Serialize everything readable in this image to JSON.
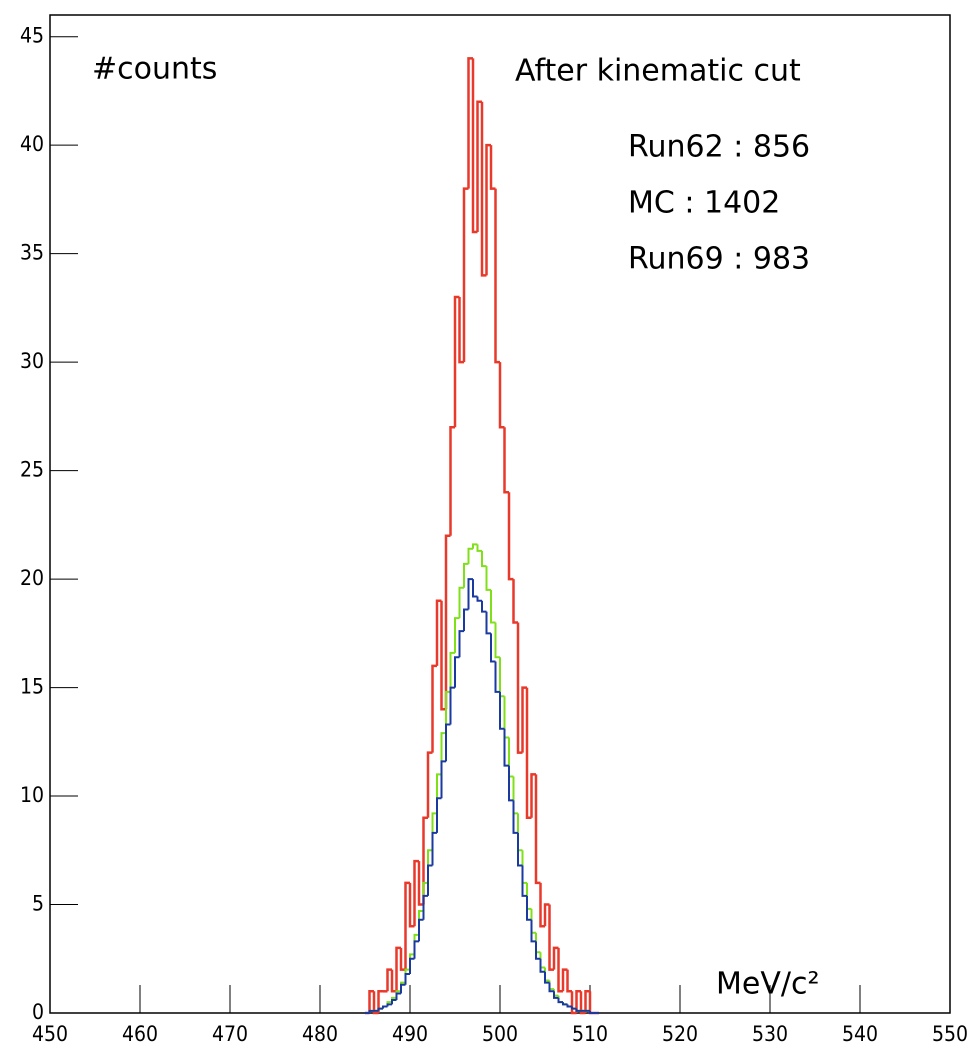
{
  "chart_data": {
    "type": "histogram",
    "annotations": [
      "#counts",
      "After kinematic cut"
    ],
    "x_label": "MeV/c²",
    "bins": [
      485,
      485.5,
      486,
      486.5,
      487,
      487.5,
      488,
      488.5,
      489,
      489.5,
      490,
      490.5,
      491,
      491.5,
      492,
      492.5,
      493,
      493.5,
      494,
      494.5,
      495,
      495.5,
      496,
      496.5,
      497,
      497.5,
      498,
      498.5,
      499,
      499.5,
      500,
      500.5,
      501,
      501.5,
      502,
      502.5,
      503,
      503.5,
      504,
      504.5,
      505,
      505.5,
      506,
      506.5,
      507,
      507.5,
      508,
      508.5,
      509,
      509.5,
      510,
      510.5,
      511
    ],
    "series": [
      {
        "name": "Run62 : 856",
        "color": "#e8392b",
        "values": [
          0,
          1,
          0,
          1,
          1,
          2,
          1,
          3,
          2,
          6,
          4,
          7,
          5,
          9,
          12,
          16,
          19,
          14,
          22,
          27,
          33,
          30,
          38,
          44,
          36,
          42,
          34,
          40,
          38,
          30,
          27,
          24,
          20,
          18,
          12,
          15,
          9,
          11,
          6,
          4,
          5,
          2,
          3,
          1,
          2,
          1,
          0,
          1,
          0,
          1,
          0,
          0
        ]
      },
      {
        "name": "MC : 1402",
        "color": "#7fe01a",
        "values": [
          0,
          0.1,
          0.1,
          0.2,
          0.3,
          0.5,
          0.7,
          1.0,
          1.4,
          2.0,
          2.7,
          3.6,
          4.7,
          6.0,
          7.5,
          9.2,
          11.0,
          12.9,
          14.8,
          16.6,
          18.2,
          19.6,
          20.7,
          21.4,
          21.6,
          21.3,
          20.6,
          19.5,
          18.0,
          16.4,
          14.6,
          12.7,
          10.9,
          9.2,
          7.5,
          6.0,
          4.8,
          3.7,
          2.8,
          2.1,
          1.5,
          1.1,
          0.8,
          0.5,
          0.4,
          0.3,
          0.2,
          0.1,
          0.1,
          0.1,
          0,
          0
        ]
      },
      {
        "name": "Run69 : 983",
        "color": "#1a3aa0",
        "values": [
          0,
          0.1,
          0.1,
          0.2,
          0.3,
          0.4,
          0.6,
          0.9,
          1.3,
          1.8,
          2.5,
          3.3,
          4.3,
          5.4,
          6.8,
          8.3,
          9.9,
          11.6,
          13.3,
          15.0,
          16.4,
          17.6,
          18.6,
          20.0,
          19.2,
          19.0,
          18.5,
          17.5,
          16.2,
          14.8,
          13.1,
          11.4,
          9.8,
          8.3,
          6.8,
          5.4,
          4.3,
          3.3,
          2.5,
          1.9,
          1.4,
          1.0,
          0.7,
          0.5,
          0.4,
          0.3,
          0.2,
          0.1,
          0.1,
          0.1,
          0,
          0
        ]
      }
    ],
    "xlim": [
      450,
      550
    ],
    "xticks": [
      450,
      460,
      470,
      480,
      490,
      500,
      510,
      520,
      530,
      540,
      550
    ],
    "ylim": [
      0,
      46
    ],
    "yticks": [
      0,
      5,
      10,
      15,
      20,
      25,
      30,
      35,
      40,
      45
    ]
  }
}
